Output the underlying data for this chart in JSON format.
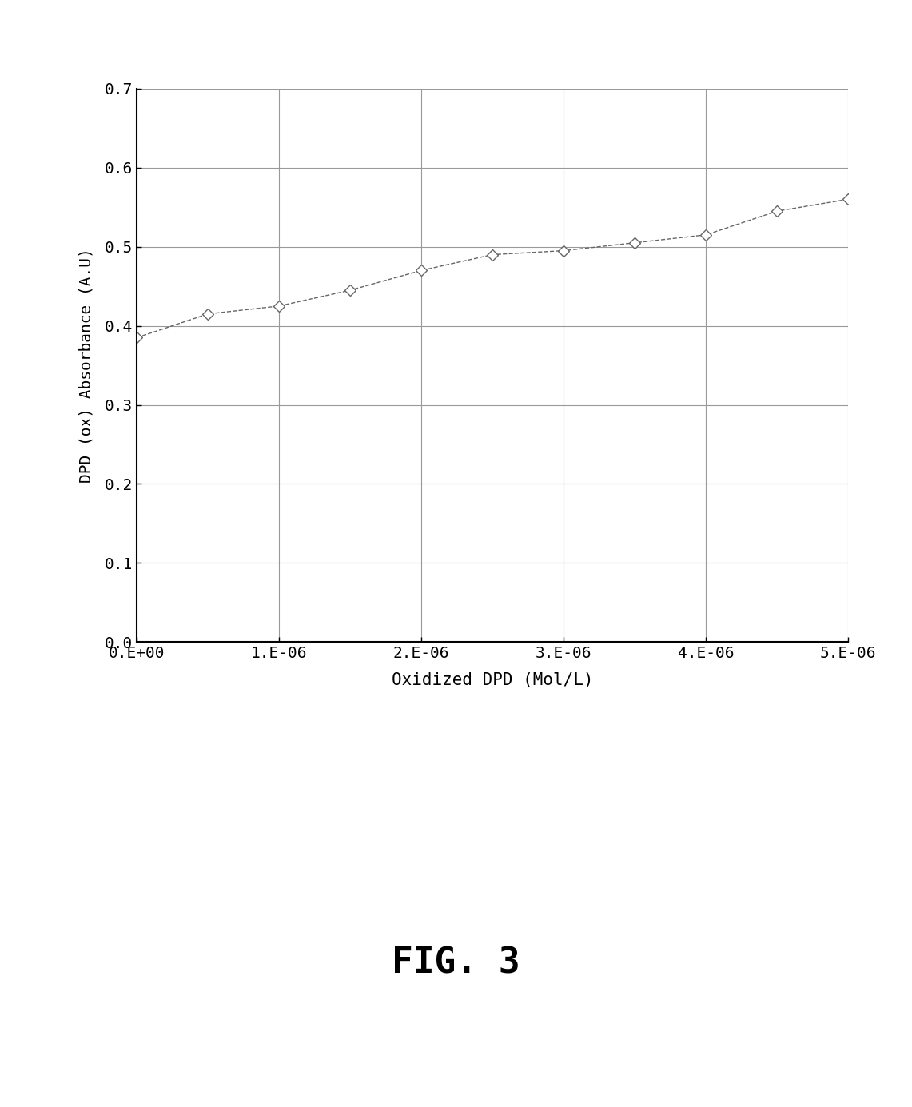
{
  "x": [
    0.0,
    5e-07,
    1e-06,
    1.5e-06,
    2e-06,
    2.5e-06,
    3e-06,
    3.5e-06,
    4e-06,
    4.5e-06,
    5e-06
  ],
  "y": [
    0.385,
    0.415,
    0.425,
    0.445,
    0.47,
    0.49,
    0.495,
    0.505,
    0.515,
    0.545,
    0.56
  ],
  "xlabel": "Oxidized DPD (Mol/L)",
  "ylabel": "DPD (ox) Absorbance (A.U)",
  "ylim": [
    0,
    0.7
  ],
  "xlim": [
    0,
    5e-06
  ],
  "yticks": [
    0,
    0.1,
    0.2,
    0.3,
    0.4,
    0.5,
    0.6,
    0.7
  ],
  "xticks": [
    0,
    1e-06,
    2e-06,
    3e-06,
    4e-06,
    5e-06
  ],
  "xtick_labels": [
    "0.E+00",
    "1.E-06",
    "2.E-06",
    "3.E-06",
    "4.E-06",
    "5.E-06"
  ],
  "fig_label": "FIG. 3",
  "line_color": "#666666",
  "grid_color": "#999999",
  "background_color": "#ffffff"
}
